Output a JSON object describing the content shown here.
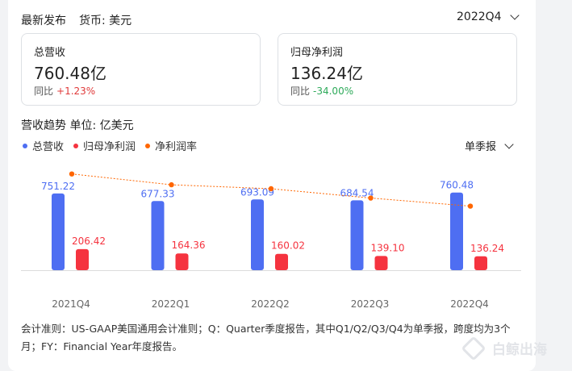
{
  "header": {
    "title": "最新发布",
    "currency_label": "货币: 美元",
    "period": "2022Q4"
  },
  "metrics": {
    "revenue": {
      "label": "总营收",
      "value": "760.48亿",
      "yoy_label": "同比",
      "yoy_value": "+1.23%"
    },
    "net_profit": {
      "label": "归母净利润",
      "value": "136.24亿",
      "yoy_label": "同比",
      "yoy_value": "-34.00%"
    }
  },
  "trend": {
    "title": "营收趋势  单位: 亿美元",
    "report_type": "单季报",
    "legend": {
      "revenue": "总营收",
      "net_profit": "归母净利润",
      "net_margin": "净利润率"
    }
  },
  "colors": {
    "revenue": "#4e6ef2",
    "net_profit": "#f5333f",
    "net_margin": "#ff6600"
  },
  "chart_data": {
    "type": "bar",
    "categories": [
      "2021Q4",
      "2022Q1",
      "2022Q2",
      "2022Q3",
      "2022Q4"
    ],
    "series": [
      {
        "name": "总营收",
        "values": [
          751.22,
          677.33,
          693.09,
          684.54,
          760.48
        ]
      },
      {
        "name": "归母净利润",
        "values": [
          206.42,
          164.36,
          160.02,
          139.1,
          136.24
        ]
      }
    ],
    "line_series": {
      "name": "净利润率",
      "values": [
        27.48,
        24.27,
        23.09,
        20.32,
        17.92
      ]
    },
    "ylim": [
      0,
      800
    ],
    "legend": [
      "总营收",
      "归母净利润",
      "净利润率"
    ]
  },
  "footnote": "会计准则：US-GAAP美国通用会计准则；Q：Quarter季度报告，其中Q1/Q2/Q3/Q4为单季报，跨度均为3个月；FY：Financial Year年度报告。",
  "watermark": "白鲸出海"
}
